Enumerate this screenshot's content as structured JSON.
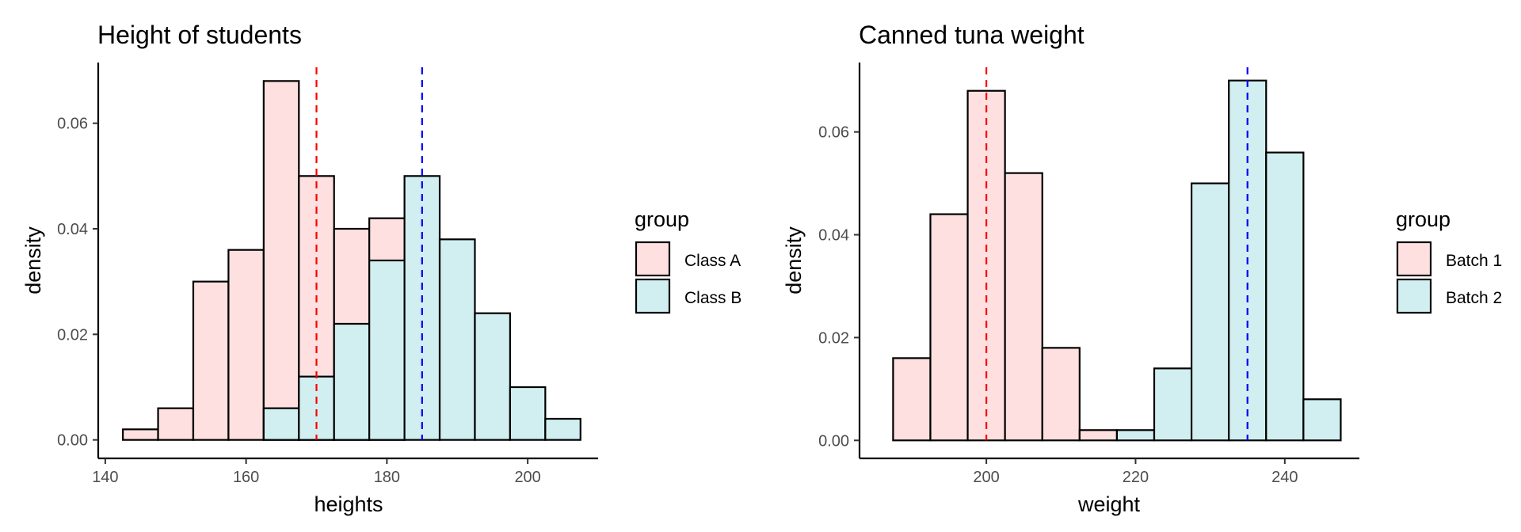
{
  "chart_data": [
    {
      "type": "histogram",
      "title": "Height of students",
      "xlabel": "heights",
      "ylabel": "density",
      "xlim": [
        139,
        210
      ],
      "ylim": [
        -0.0035,
        0.0715
      ],
      "xticks": [
        140,
        160,
        180,
        200
      ],
      "yticks": [
        0.0,
        0.02,
        0.04,
        0.06
      ],
      "ytick_labels": [
        "0.00",
        "0.02",
        "0.04",
        "0.06"
      ],
      "bin_width": 5,
      "legend": {
        "title": "group",
        "position": "right"
      },
      "series": [
        {
          "name": "Class A",
          "color": "#fde0df",
          "bins": [
            [
              145,
              0.002
            ],
            [
              150,
              0.006
            ],
            [
              155,
              0.03
            ],
            [
              160,
              0.036
            ],
            [
              165,
              0.068
            ],
            [
              170,
              0.05
            ],
            [
              175,
              0.04
            ],
            [
              180,
              0.042
            ]
          ]
        },
        {
          "name": "Class B",
          "color": "#d1eff0",
          "bins": [
            [
              165,
              0.006
            ],
            [
              170,
              0.012
            ],
            [
              175,
              0.022
            ],
            [
              180,
              0.034
            ],
            [
              185,
              0.05
            ],
            [
              190,
              0.038
            ],
            [
              195,
              0.024
            ],
            [
              200,
              0.01
            ],
            [
              205,
              0.004
            ]
          ]
        }
      ],
      "vlines": [
        {
          "x": 170,
          "color": "#ff0000",
          "style": "dashed"
        },
        {
          "x": 185,
          "color": "#0000ff",
          "style": "dashed"
        }
      ],
      "grid": false
    },
    {
      "type": "histogram",
      "title": "Canned tuna weight",
      "xlabel": "weight",
      "ylabel": "density",
      "xlim": [
        183,
        250
      ],
      "ylim": [
        -0.0035,
        0.0735
      ],
      "xticks": [
        200,
        220,
        240
      ],
      "yticks": [
        0.0,
        0.02,
        0.04,
        0.06
      ],
      "ytick_labels": [
        "0.00",
        "0.02",
        "0.04",
        "0.06"
      ],
      "bin_width": 5,
      "legend": {
        "title": "group",
        "position": "right"
      },
      "series": [
        {
          "name": "Batch 1",
          "color": "#fde0df",
          "bins": [
            [
              190,
              0.016
            ],
            [
              195,
              0.044
            ],
            [
              200,
              0.068
            ],
            [
              205,
              0.052
            ],
            [
              210,
              0.018
            ],
            [
              215,
              0.002
            ]
          ]
        },
        {
          "name": "Batch 2",
          "color": "#d1eff0",
          "bins": [
            [
              220,
              0.002
            ],
            [
              225,
              0.014
            ],
            [
              230,
              0.05
            ],
            [
              235,
              0.07
            ],
            [
              240,
              0.056
            ],
            [
              245,
              0.008
            ]
          ]
        }
      ],
      "vlines": [
        {
          "x": 200,
          "color": "#ff0000",
          "style": "dashed"
        },
        {
          "x": 235,
          "color": "#0000ff",
          "style": "dashed"
        }
      ],
      "grid": false
    }
  ]
}
